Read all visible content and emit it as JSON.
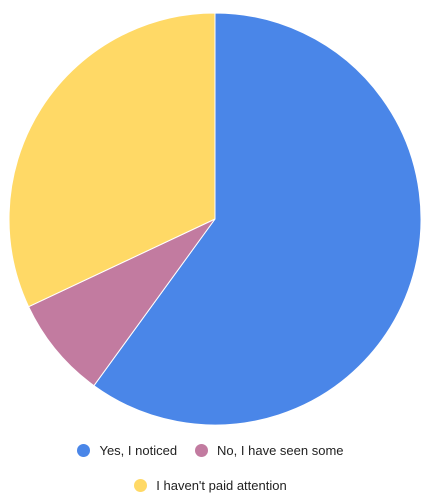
{
  "chart_data": {
    "type": "pie",
    "slices": [
      {
        "label": "Yes, I noticed",
        "value": 60,
        "color": "#4A86E8"
      },
      {
        "label": "No, I have seen some",
        "value": 8,
        "color": "#C27BA0"
      },
      {
        "label": "I haven't paid attention",
        "value": 32,
        "color": "#FFD966"
      }
    ],
    "legend_position": "bottom",
    "start_angle": "top (12 o'clock)",
    "direction": "clockwise"
  }
}
